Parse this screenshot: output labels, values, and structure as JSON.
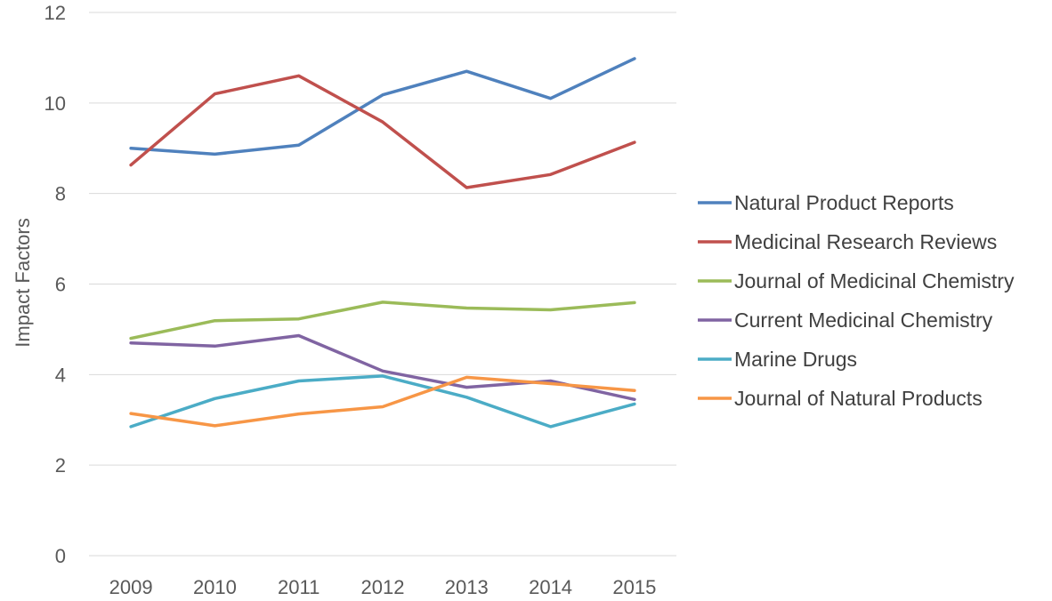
{
  "chart_data": {
    "type": "line",
    "title": "",
    "xlabel": "",
    "ylabel": "Impact Factors",
    "categories": [
      "2009",
      "2010",
      "2011",
      "2012",
      "2013",
      "2014",
      "2015"
    ],
    "ylim": [
      0,
      12
    ],
    "yticks": [
      0,
      2,
      4,
      6,
      8,
      10,
      12
    ],
    "grid": true,
    "legend_position": "right",
    "series": [
      {
        "name": "Natural Product Reports",
        "color": "#4f81bd",
        "values": [
          9.0,
          8.87,
          9.07,
          10.18,
          10.7,
          10.1,
          10.98
        ]
      },
      {
        "name": "Medicinal Research Reviews",
        "color": "#c0504d",
        "values": [
          8.63,
          10.2,
          10.6,
          9.58,
          8.13,
          8.42,
          9.13
        ]
      },
      {
        "name": "Journal of Medicinal Chemistry",
        "color": "#9bbb59",
        "values": [
          4.8,
          5.19,
          5.23,
          5.6,
          5.47,
          5.43,
          5.59
        ]
      },
      {
        "name": "Current Medicinal Chemistry",
        "color": "#8064a2",
        "values": [
          4.7,
          4.63,
          4.86,
          4.08,
          3.72,
          3.86,
          3.45
        ]
      },
      {
        "name": "Marine Drugs",
        "color": "#4bacc6",
        "values": [
          2.85,
          3.47,
          3.86,
          3.97,
          3.5,
          2.85,
          3.35
        ]
      },
      {
        "name": "Journal of Natural Products",
        "color": "#f79646",
        "values": [
          3.14,
          2.87,
          3.13,
          3.29,
          3.94,
          3.8,
          3.65
        ]
      }
    ]
  }
}
